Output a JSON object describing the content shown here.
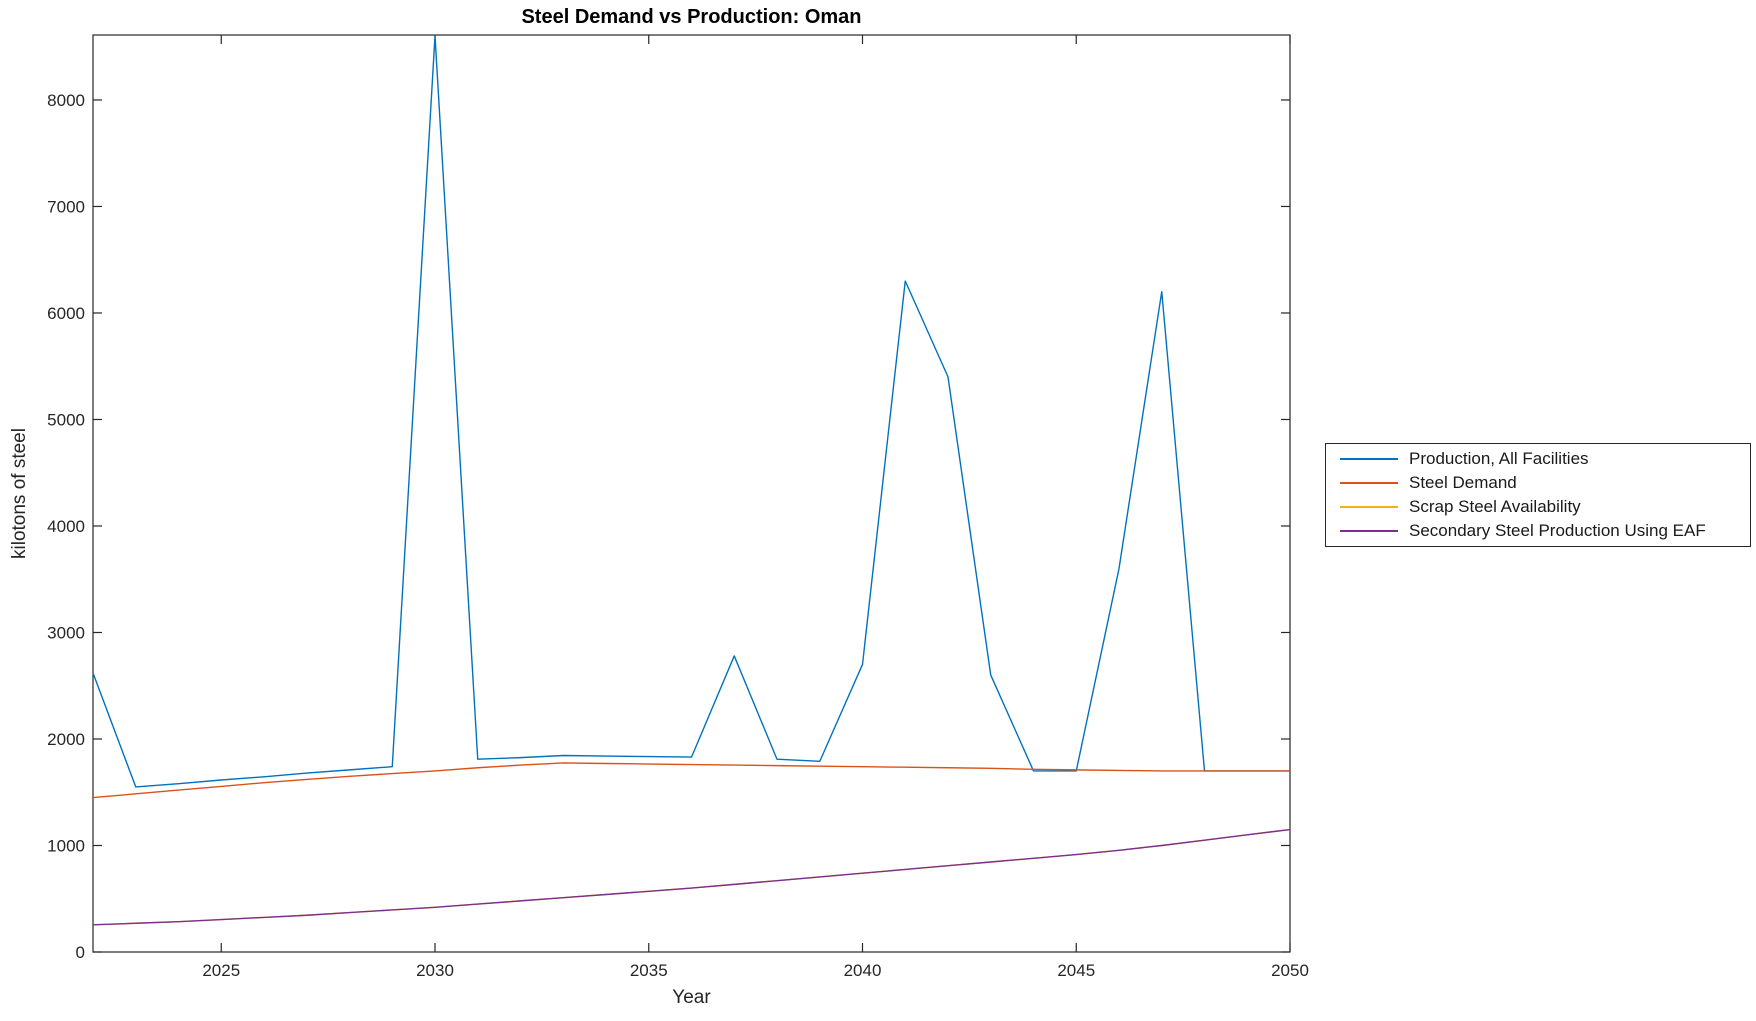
{
  "figure": {
    "title": "Steel Demand vs Production: Oman"
  },
  "chart_data": {
    "type": "line",
    "title": "Steel Demand vs Production: Oman",
    "xlabel": "Year",
    "ylabel": "kilotons of steel",
    "xlim": [
      2022,
      2050
    ],
    "ylim": [
      0,
      8610
    ],
    "xticks": [
      2025,
      2030,
      2035,
      2040,
      2045,
      2050
    ],
    "yticks": [
      0,
      1000,
      2000,
      3000,
      4000,
      5000,
      6000,
      7000,
      8000
    ],
    "grid": false,
    "legend_position": "right-outside",
    "axis_color": "#262626",
    "x": [
      2022,
      2023,
      2024,
      2025,
      2026,
      2027,
      2028,
      2029,
      2030,
      2031,
      2032,
      2033,
      2034,
      2035,
      2036,
      2037,
      2038,
      2039,
      2040,
      2041,
      2042,
      2043,
      2044,
      2045,
      2046,
      2047,
      2048,
      2049,
      2050
    ],
    "series": [
      {
        "name": "Production, All Facilities",
        "color": "#0072BD",
        "values": [
          2620,
          1550,
          1580,
          1615,
          1645,
          1680,
          1710,
          1740,
          8600,
          1810,
          1825,
          1845,
          1840,
          1835,
          1830,
          2780,
          1810,
          1790,
          2700,
          6300,
          5400,
          2600,
          1700,
          1700,
          3600,
          6200,
          1700,
          1700,
          1700
        ]
      },
      {
        "name": "Steel Demand",
        "color": "#D95319",
        "values": [
          1450,
          1485,
          1520,
          1555,
          1590,
          1620,
          1650,
          1675,
          1700,
          1730,
          1755,
          1775,
          1770,
          1765,
          1760,
          1755,
          1750,
          1745,
          1740,
          1735,
          1730,
          1725,
          1715,
          1710,
          1705,
          1700,
          1700,
          1700,
          1700
        ]
      },
      {
        "name": "Scrap Steel Availability",
        "color": "#EDB120",
        "values": [
          255,
          270,
          285,
          305,
          325,
          345,
          370,
          395,
          420,
          450,
          480,
          510,
          540,
          570,
          600,
          635,
          670,
          705,
          740,
          775,
          810,
          845,
          880,
          915,
          955,
          1000,
          1050,
          1100,
          1150
        ]
      },
      {
        "name": "Secondary Steel Production Using EAF",
        "color": "#7E2F8E",
        "values": [
          255,
          270,
          285,
          305,
          325,
          345,
          370,
          395,
          420,
          450,
          480,
          510,
          540,
          570,
          600,
          635,
          670,
          705,
          740,
          775,
          810,
          845,
          880,
          915,
          955,
          1000,
          1050,
          1100,
          1150
        ]
      }
    ]
  }
}
